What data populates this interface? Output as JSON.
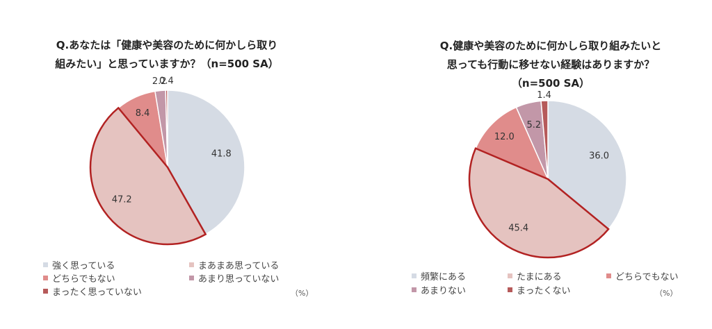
{
  "chart_data": [
    {
      "type": "pie",
      "title_lines": [
        "Q.あなたは「健康や美容のために何かしら取り",
        "組みたい」と思っていますか？（n=500 SA）"
      ],
      "unit": "（%）",
      "categories": [
        "強く思っている",
        "まあまあ思っている",
        "どちらでもない",
        "あまり思っていない",
        "まったく思っていない"
      ],
      "values": [
        41.8,
        47.2,
        8.4,
        2.2,
        0.4
      ],
      "labels": [
        "41.8",
        "47.2",
        "8.4",
        "2.2",
        "0.4"
      ],
      "colors": [
        "#d5dbe4",
        "#e5c3c0",
        "#e08c8b",
        "#c297a8",
        "#b65a5a"
      ],
      "highlighted_slice": 1,
      "highlight_color": "#b22222",
      "legend_position": "bottom"
    },
    {
      "type": "pie",
      "title_lines": [
        "Q.健康や美容のために何かしら取り組みたいと",
        "思っても行動に移せない経験はありますか？",
        "（n=500 SA）"
      ],
      "unit": "（%）",
      "categories": [
        "頻繁にある",
        "たまにある",
        "どちらでもない",
        "あまりない",
        "まったくない"
      ],
      "values": [
        36.0,
        45.4,
        12.0,
        5.2,
        1.4
      ],
      "labels": [
        "36.0",
        "45.4",
        "12.0",
        "5.2",
        "1.4"
      ],
      "colors": [
        "#d5dbe4",
        "#e5c3c0",
        "#e08c8b",
        "#c297a8",
        "#b65a5a"
      ],
      "highlighted_slice": 1,
      "highlight_color": "#b22222",
      "legend_position": "bottom"
    }
  ]
}
